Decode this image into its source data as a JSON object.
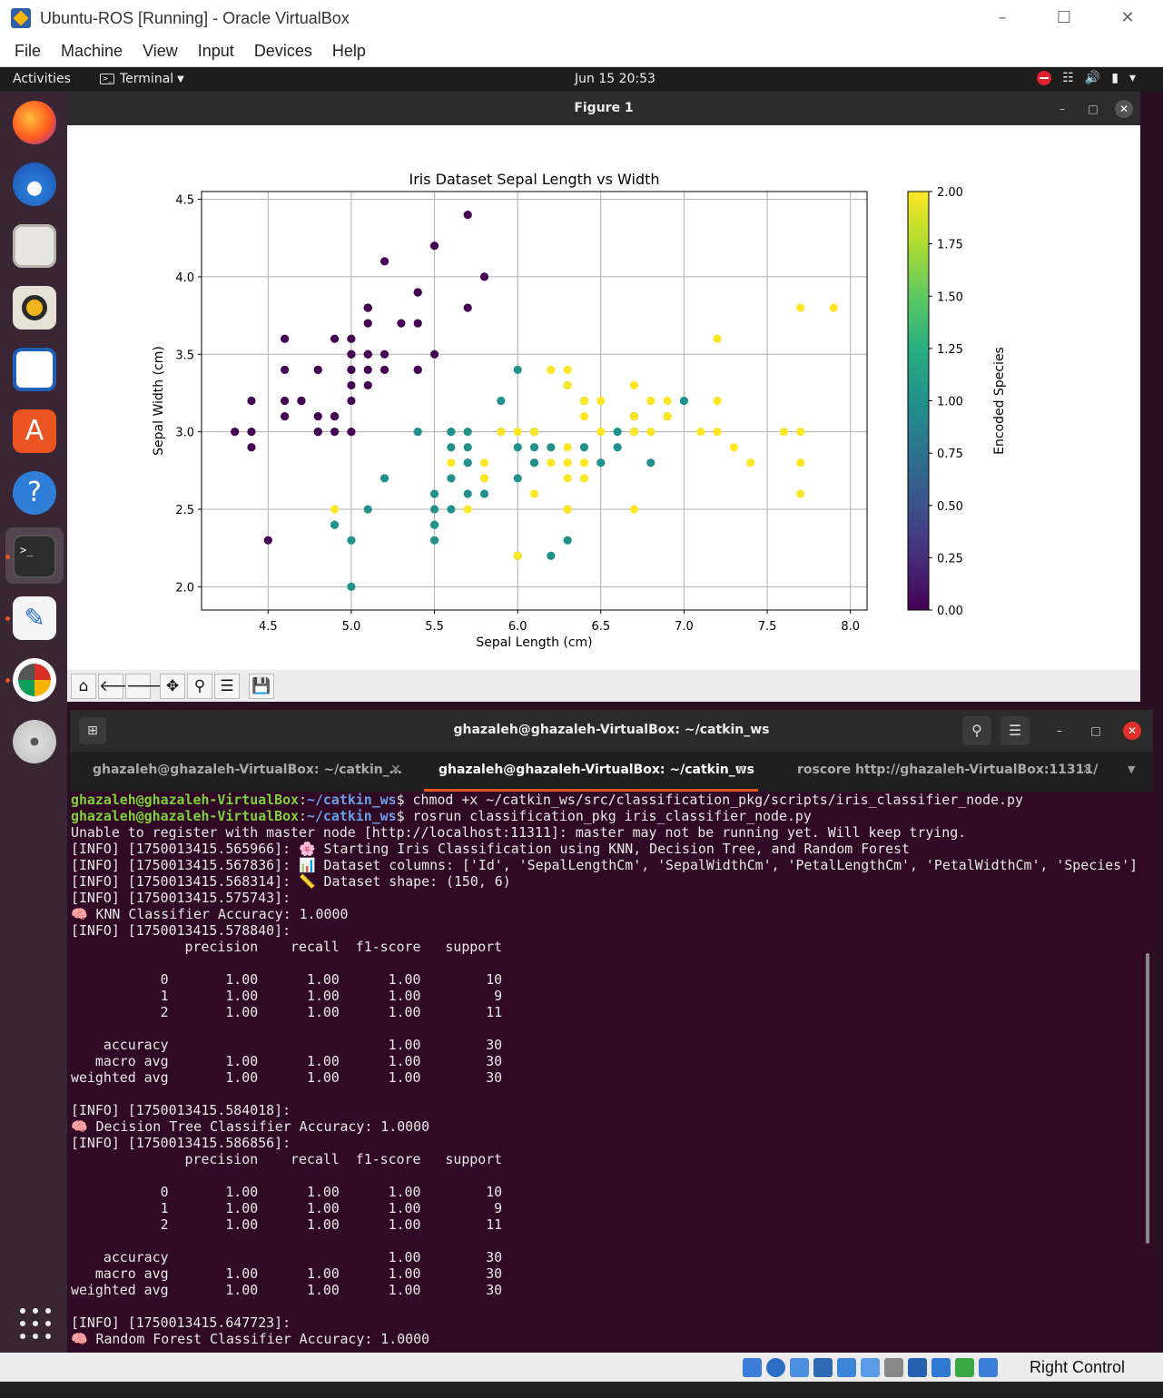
{
  "vbox": {
    "title": "Ubuntu-ROS [Running] - Oracle VirtualBox",
    "menu": [
      "File",
      "Machine",
      "View",
      "Input",
      "Devices",
      "Help"
    ],
    "host_key": "Right Control",
    "status_icons": [
      "hard-disk-icon",
      "optical-drive-icon",
      "audio-icon",
      "network-icon",
      "usb-icon",
      "shared-folder-icon",
      "display-icon",
      "recording-icon",
      "cpu-icon",
      "mouse-integration-icon",
      "keyboard-capture-icon"
    ]
  },
  "gnome": {
    "activities": "Activities",
    "app_menu": "Terminal",
    "clock": "Jun 15  20:53",
    "tray": [
      "do-not-disturb-icon",
      "network-icon",
      "volume-icon",
      "battery-icon",
      "power-menu-icon"
    ],
    "dock": [
      "firefox-icon",
      "thunderbird-icon",
      "files-icon",
      "rhythmbox-icon",
      "libreoffice-impress-icon",
      "app-center-icon",
      "help-icon",
      "terminal-icon",
      "text-editor-icon",
      "rqt-icon",
      "dvd-icon"
    ]
  },
  "figure": {
    "window_title": "Figure 1",
    "toolbar": [
      "home-icon",
      "back-icon",
      "forward-icon",
      "pan-icon",
      "zoom-icon",
      "configure-subplots-icon",
      "save-icon"
    ]
  },
  "chart_data": {
    "type": "scatter",
    "title": "Iris Dataset Sepal Length vs Width",
    "xlabel": "Sepal Length (cm)",
    "ylabel": "Sepal Width (cm)",
    "xlim": [
      4.1,
      8.1
    ],
    "ylim": [
      1.85,
      4.55
    ],
    "xticks": [
      "4.5",
      "5.0",
      "5.5",
      "6.0",
      "6.5",
      "7.0",
      "7.5",
      "8.0"
    ],
    "yticks": [
      "2.0",
      "2.5",
      "3.0",
      "3.5",
      "4.0",
      "4.5"
    ],
    "grid": true,
    "colormap": "viridis",
    "colorbar": {
      "label": "Encoded Species",
      "ticks": [
        "0.00",
        "0.25",
        "0.50",
        "0.75",
        "1.00",
        "1.25",
        "1.50",
        "1.75",
        "2.00"
      ],
      "range": [
        0,
        2
      ]
    },
    "class_colors": [
      "#440154",
      "#21918c",
      "#fde725"
    ],
    "series": [
      {
        "class": 0,
        "points": [
          [
            5.1,
            3.5
          ],
          [
            4.9,
            3.0
          ],
          [
            4.7,
            3.2
          ],
          [
            4.6,
            3.1
          ],
          [
            5.0,
            3.6
          ],
          [
            5.4,
            3.9
          ],
          [
            4.6,
            3.4
          ],
          [
            5.0,
            3.4
          ],
          [
            4.4,
            2.9
          ],
          [
            4.9,
            3.1
          ],
          [
            5.4,
            3.7
          ],
          [
            4.8,
            3.4
          ],
          [
            4.8,
            3.0
          ],
          [
            4.3,
            3.0
          ],
          [
            5.8,
            4.0
          ],
          [
            5.7,
            4.4
          ],
          [
            5.4,
            3.9
          ],
          [
            5.1,
            3.5
          ],
          [
            5.7,
            3.8
          ],
          [
            5.1,
            3.8
          ],
          [
            5.4,
            3.4
          ],
          [
            5.1,
            3.7
          ],
          [
            4.6,
            3.6
          ],
          [
            5.1,
            3.3
          ],
          [
            4.8,
            3.4
          ],
          [
            5.0,
            3.0
          ],
          [
            5.0,
            3.4
          ],
          [
            5.2,
            3.5
          ],
          [
            5.2,
            3.4
          ],
          [
            4.7,
            3.2
          ],
          [
            4.8,
            3.1
          ],
          [
            5.4,
            3.4
          ],
          [
            5.2,
            4.1
          ],
          [
            5.5,
            4.2
          ],
          [
            4.9,
            3.1
          ],
          [
            5.0,
            3.2
          ],
          [
            5.5,
            3.5
          ],
          [
            4.9,
            3.6
          ],
          [
            4.4,
            3.0
          ],
          [
            5.1,
            3.4
          ],
          [
            5.0,
            3.5
          ],
          [
            4.5,
            2.3
          ],
          [
            4.4,
            3.2
          ],
          [
            5.0,
            3.5
          ],
          [
            5.1,
            3.8
          ],
          [
            4.8,
            3.0
          ],
          [
            5.1,
            3.8
          ],
          [
            4.6,
            3.2
          ],
          [
            5.3,
            3.7
          ],
          [
            5.0,
            3.3
          ]
        ]
      },
      {
        "class": 1,
        "points": [
          [
            7.0,
            3.2
          ],
          [
            6.4,
            3.2
          ],
          [
            6.9,
            3.1
          ],
          [
            5.5,
            2.3
          ],
          [
            6.5,
            2.8
          ],
          [
            5.7,
            2.8
          ],
          [
            6.3,
            3.3
          ],
          [
            4.9,
            2.4
          ],
          [
            6.6,
            2.9
          ],
          [
            5.2,
            2.7
          ],
          [
            5.0,
            2.0
          ],
          [
            5.9,
            3.0
          ],
          [
            6.0,
            2.2
          ],
          [
            6.1,
            2.9
          ],
          [
            5.6,
            2.9
          ],
          [
            6.7,
            3.1
          ],
          [
            5.6,
            3.0
          ],
          [
            5.8,
            2.7
          ],
          [
            6.2,
            2.2
          ],
          [
            5.6,
            2.5
          ],
          [
            5.9,
            3.2
          ],
          [
            6.1,
            2.8
          ],
          [
            6.3,
            2.5
          ],
          [
            6.1,
            2.8
          ],
          [
            6.4,
            2.9
          ],
          [
            6.6,
            3.0
          ],
          [
            6.8,
            2.8
          ],
          [
            6.7,
            3.0
          ],
          [
            6.0,
            2.9
          ],
          [
            5.7,
            2.6
          ],
          [
            5.5,
            2.4
          ],
          [
            5.5,
            2.4
          ],
          [
            5.8,
            2.7
          ],
          [
            6.0,
            2.7
          ],
          [
            5.4,
            3.0
          ],
          [
            6.0,
            3.4
          ],
          [
            6.7,
            3.1
          ],
          [
            6.3,
            2.3
          ],
          [
            5.6,
            3.0
          ],
          [
            5.5,
            2.5
          ],
          [
            5.5,
            2.6
          ],
          [
            6.1,
            3.0
          ],
          [
            5.8,
            2.6
          ],
          [
            5.0,
            2.3
          ],
          [
            5.6,
            2.7
          ],
          [
            5.7,
            3.0
          ],
          [
            5.7,
            2.9
          ],
          [
            6.2,
            2.9
          ],
          [
            5.1,
            2.5
          ],
          [
            5.7,
            2.8
          ]
        ]
      },
      {
        "class": 2,
        "points": [
          [
            6.3,
            3.3
          ],
          [
            5.8,
            2.7
          ],
          [
            7.1,
            3.0
          ],
          [
            6.3,
            2.9
          ],
          [
            6.5,
            3.0
          ],
          [
            7.6,
            3.0
          ],
          [
            4.9,
            2.5
          ],
          [
            7.3,
            2.9
          ],
          [
            6.7,
            2.5
          ],
          [
            7.2,
            3.6
          ],
          [
            6.5,
            3.2
          ],
          [
            6.4,
            2.7
          ],
          [
            6.8,
            3.0
          ],
          [
            5.7,
            2.5
          ],
          [
            5.8,
            2.8
          ],
          [
            6.4,
            3.2
          ],
          [
            6.5,
            3.0
          ],
          [
            7.7,
            3.8
          ],
          [
            7.7,
            2.6
          ],
          [
            6.0,
            2.2
          ],
          [
            6.9,
            3.2
          ],
          [
            5.6,
            2.8
          ],
          [
            7.7,
            2.8
          ],
          [
            6.3,
            2.7
          ],
          [
            6.7,
            3.3
          ],
          [
            7.2,
            3.2
          ],
          [
            6.2,
            2.8
          ],
          [
            6.1,
            3.0
          ],
          [
            6.4,
            2.8
          ],
          [
            7.2,
            3.0
          ],
          [
            7.4,
            2.8
          ],
          [
            7.9,
            3.8
          ],
          [
            6.4,
            2.8
          ],
          [
            6.3,
            2.8
          ],
          [
            6.1,
            2.6
          ],
          [
            7.7,
            3.0
          ],
          [
            6.3,
            3.4
          ],
          [
            6.4,
            3.1
          ],
          [
            6.0,
            3.0
          ],
          [
            6.9,
            3.1
          ],
          [
            6.7,
            3.1
          ],
          [
            6.9,
            3.1
          ],
          [
            5.8,
            2.7
          ],
          [
            6.8,
            3.2
          ],
          [
            6.7,
            3.3
          ],
          [
            6.7,
            3.0
          ],
          [
            6.3,
            2.5
          ],
          [
            6.5,
            3.0
          ],
          [
            6.2,
            3.4
          ],
          [
            5.9,
            3.0
          ]
        ]
      }
    ]
  },
  "terminal": {
    "title": "ghazaleh@ghazaleh-VirtualBox: ~/catkin_ws",
    "tabs": [
      {
        "label": "ghazaleh@ghazaleh-VirtualBox: ~/catkin_…",
        "active": false
      },
      {
        "label": "ghazaleh@ghazaleh-VirtualBox: ~/catkin_ws",
        "active": true
      },
      {
        "label": "roscore http://ghazaleh-VirtualBox:11311/",
        "active": false
      }
    ],
    "prompt_user": "ghazaleh@ghazaleh-VirtualBox",
    "prompt_path": "~/catkin_ws",
    "commands": [
      "$ chmod +x ~/catkin_ws/src/classification_pkg/scripts/iris_classifier_node.py",
      "$ rosrun classification_pkg iris_classifier_node.py"
    ],
    "output": [
      "Unable to register with master node [http://localhost:11311]: master may not be running yet. Will keep trying.",
      "[INFO] [1750013415.565966]: 🌸 Starting Iris Classification using KNN, Decision Tree, and Random Forest",
      "[INFO] [1750013415.567836]: 📊 Dataset columns: ['Id', 'SepalLengthCm', 'SepalWidthCm', 'PetalLengthCm', 'PetalWidthCm', 'Species']",
      "[INFO] [1750013415.568314]: 📏 Dataset shape: (150, 6)",
      "[INFO] [1750013415.575743]:",
      "🧠 KNN Classifier Accuracy: 1.0000",
      "[INFO] [1750013415.578840]:",
      "              precision    recall  f1-score   support",
      "",
      "           0       1.00      1.00      1.00        10",
      "           1       1.00      1.00      1.00         9",
      "           2       1.00      1.00      1.00        11",
      "",
      "    accuracy                           1.00        30",
      "   macro avg       1.00      1.00      1.00        30",
      "weighted avg       1.00      1.00      1.00        30",
      "",
      "[INFO] [1750013415.584018]:",
      "🧠 Decision Tree Classifier Accuracy: 1.0000",
      "[INFO] [1750013415.586856]:",
      "              precision    recall  f1-score   support",
      "",
      "           0       1.00      1.00      1.00        10",
      "           1       1.00      1.00      1.00         9",
      "           2       1.00      1.00      1.00        11",
      "",
      "    accuracy                           1.00        30",
      "   macro avg       1.00      1.00      1.00        30",
      "weighted avg       1.00      1.00      1.00        30",
      "",
      "[INFO] [1750013415.647723]:",
      "🧠 Random Forest Classifier Accuracy: 1.0000"
    ]
  }
}
